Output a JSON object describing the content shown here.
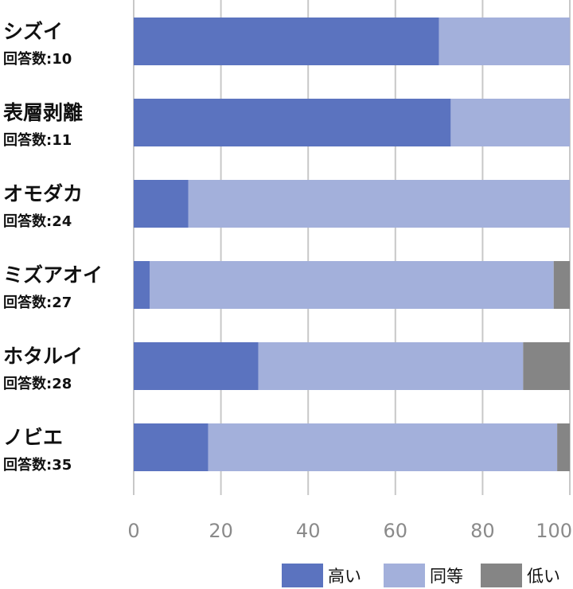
{
  "chart_data": {
    "type": "bar",
    "orientation": "horizontal",
    "stacked": true,
    "count_prefix": "回答数:",
    "categories": [
      {
        "name": "シズイ",
        "count": "10"
      },
      {
        "name": "表層剥離",
        "count": "11"
      },
      {
        "name": "オモダカ",
        "count": "24"
      },
      {
        "name": "ミズアオイ",
        "count": "27"
      },
      {
        "name": "ホタルイ",
        "count": "28"
      },
      {
        "name": "ノビエ",
        "count": "35"
      }
    ],
    "series": [
      {
        "name": "高い",
        "color": "#5b73bf",
        "values": [
          70,
          72.7,
          12.5,
          3.7,
          28.6,
          17.1
        ]
      },
      {
        "name": "同等",
        "color": "#a3b0db",
        "values": [
          30,
          27.3,
          87.5,
          92.6,
          60.7,
          80.0
        ]
      },
      {
        "name": "低い",
        "color": "#858585",
        "values": [
          0,
          0,
          0,
          3.7,
          10.7,
          2.9
        ]
      }
    ],
    "xlim": [
      0,
      100
    ],
    "xticks": [
      "0",
      "20",
      "40",
      "60",
      "80",
      "100"
    ],
    "grid": true,
    "legend_position": "bottom-right",
    "colors": {
      "grid": "#c8c8c8",
      "tick_text": "#8a8a8a",
      "text": "#111111"
    }
  }
}
